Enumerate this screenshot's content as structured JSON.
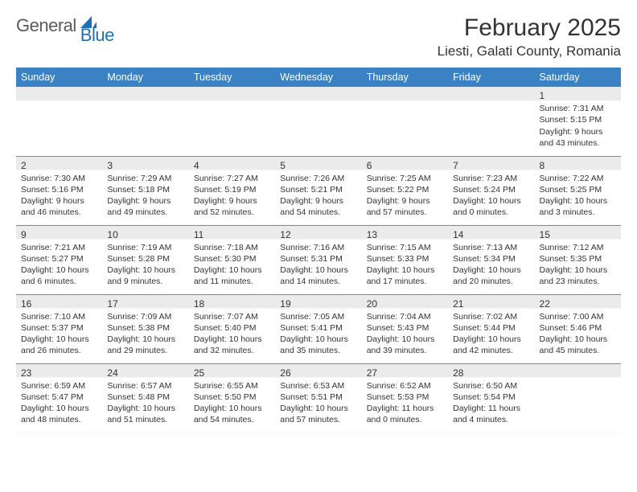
{
  "brand": {
    "general": "General",
    "blue": "Blue"
  },
  "title": "February 2025",
  "location": "Liesti, Galati County, Romania",
  "colors": {
    "header_bg": "#3b82c4",
    "header_fg": "#ffffff",
    "band_bg": "#ebebeb",
    "rule": "#8a8a8a",
    "text": "#333333",
    "logo_gray": "#5a5a5a",
    "logo_blue": "#1f6fb2"
  },
  "day_headers": [
    "Sunday",
    "Monday",
    "Tuesday",
    "Wednesday",
    "Thursday",
    "Friday",
    "Saturday"
  ],
  "weeks": [
    [
      null,
      null,
      null,
      null,
      null,
      null,
      {
        "n": "1",
        "sr": "Sunrise: 7:31 AM",
        "ss": "Sunset: 5:15 PM",
        "dl1": "Daylight: 9 hours",
        "dl2": "and 43 minutes."
      }
    ],
    [
      {
        "n": "2",
        "sr": "Sunrise: 7:30 AM",
        "ss": "Sunset: 5:16 PM",
        "dl1": "Daylight: 9 hours",
        "dl2": "and 46 minutes."
      },
      {
        "n": "3",
        "sr": "Sunrise: 7:29 AM",
        "ss": "Sunset: 5:18 PM",
        "dl1": "Daylight: 9 hours",
        "dl2": "and 49 minutes."
      },
      {
        "n": "4",
        "sr": "Sunrise: 7:27 AM",
        "ss": "Sunset: 5:19 PM",
        "dl1": "Daylight: 9 hours",
        "dl2": "and 52 minutes."
      },
      {
        "n": "5",
        "sr": "Sunrise: 7:26 AM",
        "ss": "Sunset: 5:21 PM",
        "dl1": "Daylight: 9 hours",
        "dl2": "and 54 minutes."
      },
      {
        "n": "6",
        "sr": "Sunrise: 7:25 AM",
        "ss": "Sunset: 5:22 PM",
        "dl1": "Daylight: 9 hours",
        "dl2": "and 57 minutes."
      },
      {
        "n": "7",
        "sr": "Sunrise: 7:23 AM",
        "ss": "Sunset: 5:24 PM",
        "dl1": "Daylight: 10 hours",
        "dl2": "and 0 minutes."
      },
      {
        "n": "8",
        "sr": "Sunrise: 7:22 AM",
        "ss": "Sunset: 5:25 PM",
        "dl1": "Daylight: 10 hours",
        "dl2": "and 3 minutes."
      }
    ],
    [
      {
        "n": "9",
        "sr": "Sunrise: 7:21 AM",
        "ss": "Sunset: 5:27 PM",
        "dl1": "Daylight: 10 hours",
        "dl2": "and 6 minutes."
      },
      {
        "n": "10",
        "sr": "Sunrise: 7:19 AM",
        "ss": "Sunset: 5:28 PM",
        "dl1": "Daylight: 10 hours",
        "dl2": "and 9 minutes."
      },
      {
        "n": "11",
        "sr": "Sunrise: 7:18 AM",
        "ss": "Sunset: 5:30 PM",
        "dl1": "Daylight: 10 hours",
        "dl2": "and 11 minutes."
      },
      {
        "n": "12",
        "sr": "Sunrise: 7:16 AM",
        "ss": "Sunset: 5:31 PM",
        "dl1": "Daylight: 10 hours",
        "dl2": "and 14 minutes."
      },
      {
        "n": "13",
        "sr": "Sunrise: 7:15 AM",
        "ss": "Sunset: 5:33 PM",
        "dl1": "Daylight: 10 hours",
        "dl2": "and 17 minutes."
      },
      {
        "n": "14",
        "sr": "Sunrise: 7:13 AM",
        "ss": "Sunset: 5:34 PM",
        "dl1": "Daylight: 10 hours",
        "dl2": "and 20 minutes."
      },
      {
        "n": "15",
        "sr": "Sunrise: 7:12 AM",
        "ss": "Sunset: 5:35 PM",
        "dl1": "Daylight: 10 hours",
        "dl2": "and 23 minutes."
      }
    ],
    [
      {
        "n": "16",
        "sr": "Sunrise: 7:10 AM",
        "ss": "Sunset: 5:37 PM",
        "dl1": "Daylight: 10 hours",
        "dl2": "and 26 minutes."
      },
      {
        "n": "17",
        "sr": "Sunrise: 7:09 AM",
        "ss": "Sunset: 5:38 PM",
        "dl1": "Daylight: 10 hours",
        "dl2": "and 29 minutes."
      },
      {
        "n": "18",
        "sr": "Sunrise: 7:07 AM",
        "ss": "Sunset: 5:40 PM",
        "dl1": "Daylight: 10 hours",
        "dl2": "and 32 minutes."
      },
      {
        "n": "19",
        "sr": "Sunrise: 7:05 AM",
        "ss": "Sunset: 5:41 PM",
        "dl1": "Daylight: 10 hours",
        "dl2": "and 35 minutes."
      },
      {
        "n": "20",
        "sr": "Sunrise: 7:04 AM",
        "ss": "Sunset: 5:43 PM",
        "dl1": "Daylight: 10 hours",
        "dl2": "and 39 minutes."
      },
      {
        "n": "21",
        "sr": "Sunrise: 7:02 AM",
        "ss": "Sunset: 5:44 PM",
        "dl1": "Daylight: 10 hours",
        "dl2": "and 42 minutes."
      },
      {
        "n": "22",
        "sr": "Sunrise: 7:00 AM",
        "ss": "Sunset: 5:46 PM",
        "dl1": "Daylight: 10 hours",
        "dl2": "and 45 minutes."
      }
    ],
    [
      {
        "n": "23",
        "sr": "Sunrise: 6:59 AM",
        "ss": "Sunset: 5:47 PM",
        "dl1": "Daylight: 10 hours",
        "dl2": "and 48 minutes."
      },
      {
        "n": "24",
        "sr": "Sunrise: 6:57 AM",
        "ss": "Sunset: 5:48 PM",
        "dl1": "Daylight: 10 hours",
        "dl2": "and 51 minutes."
      },
      {
        "n": "25",
        "sr": "Sunrise: 6:55 AM",
        "ss": "Sunset: 5:50 PM",
        "dl1": "Daylight: 10 hours",
        "dl2": "and 54 minutes."
      },
      {
        "n": "26",
        "sr": "Sunrise: 6:53 AM",
        "ss": "Sunset: 5:51 PM",
        "dl1": "Daylight: 10 hours",
        "dl2": "and 57 minutes."
      },
      {
        "n": "27",
        "sr": "Sunrise: 6:52 AM",
        "ss": "Sunset: 5:53 PM",
        "dl1": "Daylight: 11 hours",
        "dl2": "and 0 minutes."
      },
      {
        "n": "28",
        "sr": "Sunrise: 6:50 AM",
        "ss": "Sunset: 5:54 PM",
        "dl1": "Daylight: 11 hours",
        "dl2": "and 4 minutes."
      },
      null
    ]
  ]
}
